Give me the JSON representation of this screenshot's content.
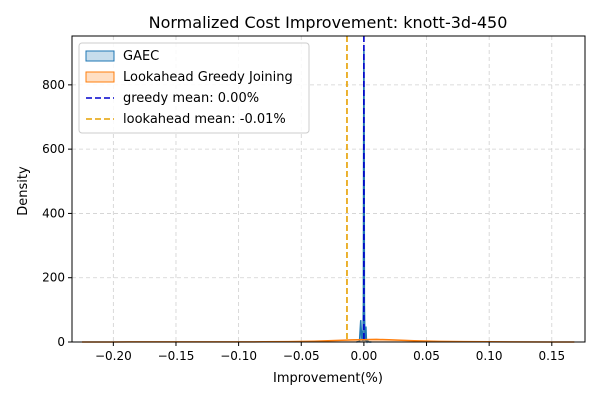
{
  "chart_data": {
    "type": "area",
    "title": "Normalized Cost Improvement: knott-3d-450",
    "xlabel": "Improvement(%)",
    "ylabel": "Density",
    "xlim": [
      -0.233,
      0.1765
    ],
    "ylim": [
      0,
      952
    ],
    "xticks": [
      -0.2,
      -0.15,
      -0.1,
      -0.05,
      0.0,
      0.05,
      0.1,
      0.15
    ],
    "xtick_labels": [
      "−0.20",
      "−0.15",
      "−0.10",
      "−0.05",
      "0.00",
      "0.05",
      "0.10",
      "0.15"
    ],
    "yticks": [
      0,
      200,
      400,
      600,
      800
    ],
    "ytick_labels": [
      "0",
      "200",
      "400",
      "600",
      "800"
    ],
    "grid": true,
    "legend_position": "top-left",
    "series": [
      {
        "name": "GAEC",
        "color": "#1f77b4",
        "x": [
          -0.006,
          -0.0035,
          -0.0025,
          -0.0018,
          -0.0012,
          -0.0008,
          -0.0004,
          -0.0002,
          0.0,
          0.0002,
          0.0004,
          0.0008,
          0.0012,
          0.0016,
          0.002,
          0.0026,
          0.0032,
          0.004,
          0.006
        ],
        "y": [
          0,
          2,
          68,
          10,
          35,
          3,
          120,
          650,
          910,
          650,
          120,
          12,
          3,
          48,
          6,
          0,
          3,
          0,
          0
        ]
      },
      {
        "name": "Lookahead Greedy Joining",
        "color": "#ff7f0e",
        "x": [
          -0.225,
          -0.2,
          -0.15,
          -0.1,
          -0.08,
          -0.06,
          -0.04,
          -0.02,
          -0.01,
          0.0,
          0.01,
          0.02,
          0.04,
          0.06,
          0.08,
          0.1,
          0.15,
          0.168
        ],
        "y": [
          0.1,
          0.2,
          0.3,
          0.4,
          0.6,
          1.0,
          2.5,
          5.0,
          6.5,
          7.5,
          8.0,
          7.0,
          4.0,
          2.0,
          1.0,
          0.6,
          0.2,
          0.1
        ]
      }
    ],
    "reference_lines": [
      {
        "name": "greedy mean: 0.00%",
        "x": 0.0,
        "color": "#0000cc",
        "style": "dashed"
      },
      {
        "name": "lookahead mean: -0.01%",
        "x": -0.0135,
        "color": "#e6a000",
        "style": "dashed"
      }
    ]
  }
}
